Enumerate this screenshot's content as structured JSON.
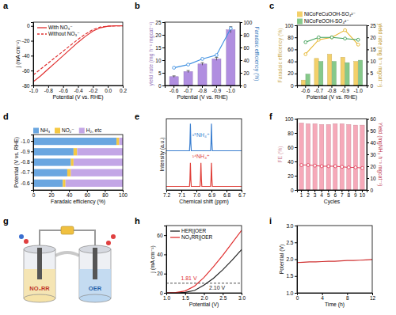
{
  "chart_data": [
    {
      "type": "line",
      "title": "a",
      "x_label": "Potential (V vs. RHE)",
      "y_label": "j (mA cm⁻²)",
      "xlim": [
        -1.0,
        0.2
      ],
      "xticks": [
        {
          "value": -1.0,
          "label": "-1.0"
        },
        -0.8,
        -0.6,
        -0.4,
        -0.2,
        {
          "value": 0,
          "label": "0.0"
        },
        0.2
      ],
      "ylim": [
        -80,
        5
      ],
      "yticks": [
        -80,
        -60,
        -40,
        -20,
        0
      ],
      "legend": "upper left",
      "x": [
        -1.0,
        -0.9,
        -0.8,
        -0.7,
        -0.6,
        -0.5,
        -0.4,
        -0.3,
        -0.2,
        -0.1,
        0.0,
        0.1,
        0.2
      ],
      "series": [
        {
          "name": "With NO₃⁻",
          "color": "#e03030",
          "line_style": "solid",
          "values": [
            -75,
            -67,
            -58,
            -49,
            -40,
            -31,
            -22,
            -14,
            -7,
            -2.5,
            -0.5,
            0,
            0
          ]
        },
        {
          "name": "Without NO₃⁻",
          "color": "#e03030",
          "line_style": "dashed",
          "values": [
            -66,
            -58,
            -50,
            -42,
            -34,
            -26,
            -18,
            -11,
            -5,
            -1.5,
            -0.3,
            0,
            0
          ]
        }
      ]
    },
    {
      "type": "bar",
      "title": "b",
      "x_label": "Potential (V vs. RHE)",
      "y_label": "yield rate (mg h⁻¹ mgcat⁻¹)",
      "y2_label": "Faradaic efficiency (%)",
      "categories": [
        "-0.6",
        "-0.7",
        "-0.8",
        "-0.9",
        "-1.0"
      ],
      "ylim": [
        0,
        25
      ],
      "yticks": [
        0,
        5,
        10,
        15,
        20,
        25
      ],
      "y2lim": [
        0,
        100
      ],
      "y2ticks": [
        0,
        20,
        40,
        60,
        80,
        100
      ],
      "series": [
        {
          "type": "bar",
          "color": "#b08ee0",
          "values": [
            3.5,
            5.5,
            8.5,
            10.5,
            22
          ],
          "errors": [
            0.3,
            0.4,
            0.5,
            0.6,
            1.2
          ]
        },
        {
          "type": "line",
          "axis": "y2",
          "color": "#3d8fe0",
          "marker": "circle",
          "values": [
            28,
            33,
            42,
            48,
            90
          ]
        }
      ]
    },
    {
      "type": "bar",
      "title": "c",
      "y_label": "Faradaic efficiency (%)",
      "y2_label": "yield rate (mg h⁻¹ mgcat⁻¹)",
      "x_label": "Potential (V vs. RHE)",
      "categories": [
        "-0.6",
        "-0.7",
        "-0.8",
        "-0.9",
        "-1.0"
      ],
      "ylim": [
        0,
        100
      ],
      "yticks": [
        0,
        20,
        40,
        60,
        80,
        100
      ],
      "y2lim": [
        0,
        25
      ],
      "y2ticks": [
        0,
        5,
        10,
        15,
        20,
        25
      ],
      "legend": "top",
      "series": [
        {
          "name": "NiCoFeCuOOH-SO₄²⁻",
          "type": "bar",
          "color": "#f3d06a",
          "values": [
            9,
            45,
            52,
            47,
            40
          ]
        },
        {
          "name": "NiCoFeOOH-SO₄²⁻",
          "type": "bar",
          "color": "#86c98a",
          "values": [
            19,
            40,
            40,
            38,
            42
          ]
        },
        {
          "type": "line",
          "axis": "y2",
          "color": "#e5b52c",
          "marker": "circle",
          "values": [
            13,
            19,
            20,
            23,
            17
          ]
        },
        {
          "type": "line",
          "axis": "y2",
          "color": "#3e9e57",
          "marker": "circle",
          "values": [
            18,
            20,
            20,
            19.5,
            19
          ]
        }
      ]
    },
    {
      "type": "bar",
      "title": "d",
      "orientation": "horizontal",
      "stacked": true,
      "legend": "top",
      "x_label": "Faradaic efficiency (%)",
      "y_label": "Potential (V vs. RHE)",
      "categories": [
        "-1.0",
        "-0.9",
        "-0.8",
        "-0.7",
        "-0.6"
      ],
      "xlim": [
        0,
        100
      ],
      "xticks": [
        0,
        20,
        40,
        60,
        80,
        100
      ],
      "series": [
        {
          "name": "NH₃",
          "color": "#6aa6e0",
          "values": [
            93,
            45,
            42,
            38,
            33
          ]
        },
        {
          "name": "NO₂⁻",
          "color": "#f5c842",
          "values": [
            3,
            4,
            3,
            4,
            3
          ]
        },
        {
          "name": "H₂, etc",
          "color": "#c3a6e6",
          "values": [
            4,
            51,
            55,
            58,
            64
          ]
        }
      ]
    },
    {
      "type": "line",
      "title": "e",
      "x_label": "Chemical shift (ppm)",
      "y_label": "Intensity (a.u.)",
      "tick_labels": "x",
      "xlim": [
        7.2,
        6.7
      ],
      "xticks": [
        7.2,
        7.1,
        {
          "value": 7.0,
          "label": "7.0"
        },
        6.9,
        6.8,
        6.7
      ],
      "ylim": [
        0,
        10
      ],
      "series": [
        {
          "color": "#3b7fd0",
          "x": [
            7.2,
            7.046,
            7.043,
            7.04,
            7.037,
            7.034,
            6.906,
            6.903,
            6.9,
            6.897,
            6.894,
            6.7
          ],
          "values": [
            5.5,
            5.5,
            6.6,
            9.3,
            6.6,
            5.5,
            5.5,
            6.6,
            9.3,
            6.6,
            5.5,
            5.5
          ]
        },
        {
          "color": "#e0403a",
          "x": [
            7.2,
            7.046,
            7.043,
            7.04,
            7.037,
            7.034,
            6.976,
            6.973,
            6.97,
            6.967,
            6.964,
            6.906,
            6.903,
            6.9,
            6.897,
            6.894,
            6.7
          ],
          "values": [
            0.5,
            0.5,
            1.5,
            3.8,
            1.5,
            0.5,
            0.5,
            1.5,
            3.8,
            1.5,
            0.5,
            0.5,
            1.5,
            3.8,
            1.5,
            0.5,
            0.5
          ]
        }
      ],
      "annotations": [
        {
          "text": "¹⁵NH₄⁺",
          "x": 6.97,
          "y": 7.4,
          "color": "#3b7fd0"
        },
        {
          "text": "¹⁴NH₄⁺",
          "x": 6.97,
          "y": 4.5,
          "color": "#e0403a"
        }
      ]
    },
    {
      "type": "bar",
      "title": "f",
      "x_label": "Cycles",
      "y_label": "FE (%)",
      "y2_label": "Yield (mgNH₃ h⁻¹ mgcat⁻¹)",
      "categories": [
        "1",
        "2",
        "3",
        "4",
        "5",
        "6",
        "7",
        "8",
        "9",
        "10"
      ],
      "ylim": [
        0,
        100
      ],
      "yticks": [
        0,
        20,
        40,
        60,
        80,
        100
      ],
      "y2lim": [
        0,
        60
      ],
      "y2ticks": [
        0,
        10,
        20,
        30,
        40,
        50,
        60
      ],
      "series": [
        {
          "type": "bar",
          "color": "#f6a9b9",
          "values": [
            94,
            93,
            93,
            92,
            92,
            93,
            93,
            92,
            91,
            91
          ]
        },
        {
          "type": "line",
          "axis": "y2",
          "color": "#e0405a",
          "marker": "circle",
          "values": [
            21,
            21,
            20.5,
            20,
            20,
            20,
            19.5,
            19,
            19,
            18.5
          ]
        }
      ]
    },
    {
      "type": "diagram",
      "title": "g",
      "labels": [
        "NO₃RR",
        "OER"
      ]
    },
    {
      "type": "line",
      "title": "h",
      "x_label": "Potential (V)",
      "y_label": "j (mA cm⁻²)",
      "legend": "upper left",
      "xlim": [
        1.0,
        3.0
      ],
      "xticks": [
        {
          "value": 1.0,
          "label": "1.0"
        },
        1.5,
        {
          "value": 2.0,
          "label": "2.0"
        },
        2.5,
        {
          "value": 3.0,
          "label": "3.0"
        }
      ],
      "ylim": [
        0,
        70
      ],
      "yticks": [
        0,
        20,
        40,
        60
      ],
      "reference_line": 10,
      "x": [
        1.0,
        1.25,
        1.5,
        1.75,
        2.0,
        2.25,
        2.5,
        2.75,
        3.0
      ],
      "series": [
        {
          "name": "HER||OER",
          "color": "#222222",
          "line_style": "solid",
          "values": [
            0,
            0,
            0.5,
            2.5,
            8,
            15,
            24,
            34,
            45
          ]
        },
        {
          "name": "NO₃RR||OER",
          "color": "#e03030",
          "line_style": "solid",
          "values": [
            0,
            0.3,
            2,
            7,
            16,
            27,
            39,
            52,
            65
          ]
        }
      ],
      "annotations": [
        {
          "text": "1.81 V",
          "x": 1.6,
          "y": 13,
          "color": "#e03030"
        },
        {
          "text": "2.10 V",
          "x": 2.35,
          "y": 3,
          "color": "#222222"
        }
      ]
    },
    {
      "type": "line",
      "title": "i",
      "x_label": "Time (h)",
      "y_label": "Potential (V)",
      "xlim": [
        0,
        12
      ],
      "xticks": [
        0,
        4,
        8,
        12
      ],
      "ylim": [
        1.0,
        3.0
      ],
      "yticks": [
        {
          "value": 1.0,
          "label": "1.0"
        },
        1.5,
        {
          "value": 2.0,
          "label": "2.0"
        },
        2.5,
        {
          "value": 3.0,
          "label": "3.0"
        }
      ],
      "x": [
        0,
        1,
        2,
        3,
        4,
        5,
        6,
        7,
        8,
        9,
        10,
        11,
        12
      ],
      "series": [
        {
          "color": "#d03030",
          "line_style": "solid",
          "values": [
            1.9,
            1.91,
            1.92,
            1.92,
            1.93,
            1.94,
            1.94,
            1.95,
            1.96,
            1.96,
            1.97,
            1.98,
            1.99
          ]
        }
      ]
    }
  ]
}
